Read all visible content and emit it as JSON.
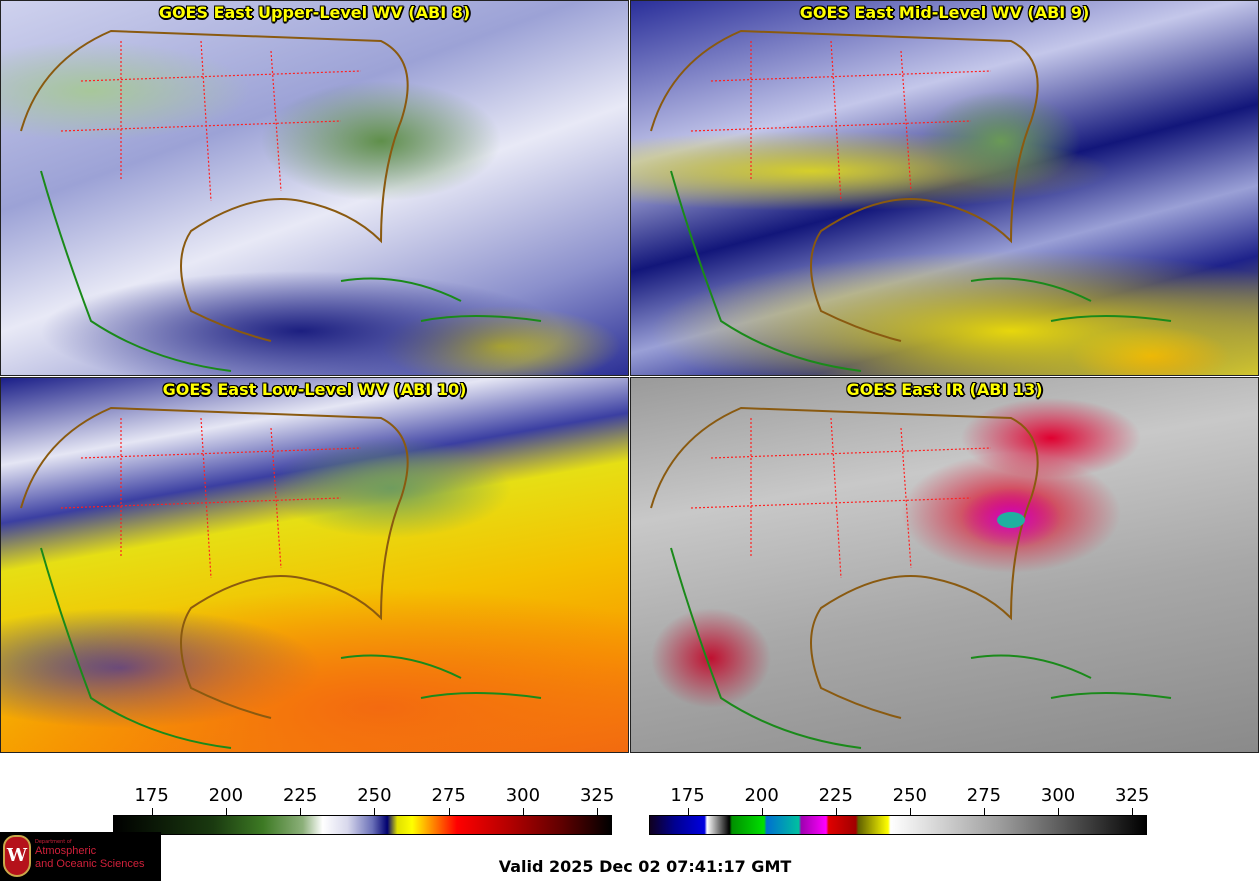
{
  "panels": [
    {
      "title": "GOES East Upper-Level WV (ABI 8)"
    },
    {
      "title": "GOES East Mid-Level WV (ABI 9)"
    },
    {
      "title": "GOES East Low-Level WV (ABI 10)"
    },
    {
      "title": "GOES East IR (ABI 13)"
    }
  ],
  "colorbars": [
    {
      "name": "water-vapor",
      "ticks": [
        "175",
        "200",
        "225",
        "250",
        "275",
        "300",
        "325"
      ],
      "range": [
        162,
        330
      ]
    },
    {
      "name": "infrared",
      "ticks": [
        "175",
        "200",
        "225",
        "250",
        "275",
        "300",
        "325"
      ],
      "range": [
        162,
        330
      ]
    }
  ],
  "logo": {
    "dept": "Department of",
    "line1": "Atmospheric",
    "line2": "and Oceanic Sciences",
    "crest": "W"
  },
  "valid_time": "Valid 2025 Dec 02 07:41:17 GMT",
  "colors": {
    "coast": "#1a8a1a",
    "borders": "#ff2020",
    "title": "#ffff00"
  }
}
